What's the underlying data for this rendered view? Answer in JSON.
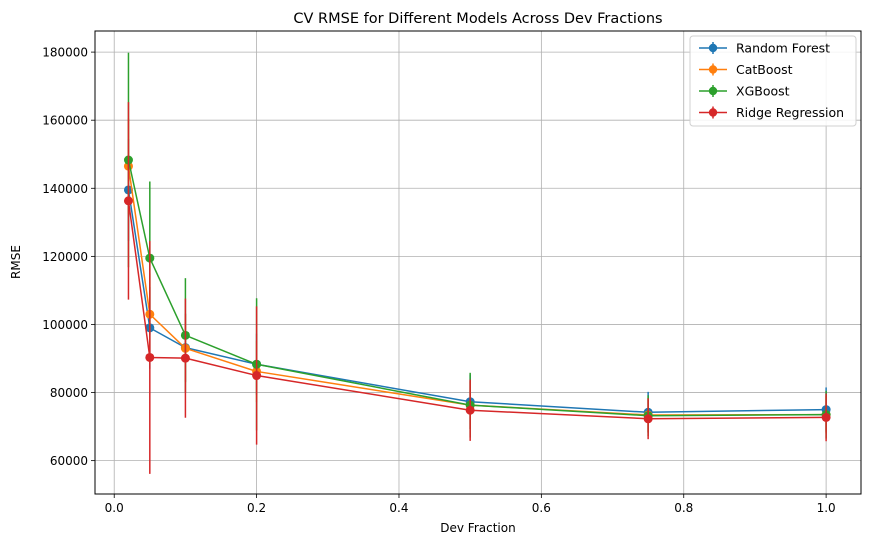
{
  "chart_data": {
    "type": "line",
    "title": "CV RMSE for Different Models Across Dev Fractions",
    "xlabel": "Dev Fraction",
    "ylabel": "RMSE",
    "xlim": [
      -0.027,
      1.049
    ],
    "ylim": [
      50200,
      186200
    ],
    "xticks": [
      0.0,
      0.2,
      0.4,
      0.6,
      0.8,
      1.0
    ],
    "xtick_labels": [
      "0.0",
      "0.2",
      "0.4",
      "0.6",
      "0.8",
      "1.0"
    ],
    "yticks": [
      60000,
      80000,
      100000,
      120000,
      140000,
      160000,
      180000
    ],
    "ytick_labels": [
      "60000",
      "80000",
      "100000",
      "120000",
      "140000",
      "160000",
      "180000"
    ],
    "grid": true,
    "legend_position": "top-right",
    "x": [
      0.02,
      0.05,
      0.1,
      0.2,
      0.5,
      0.75,
      1.0
    ],
    "series": [
      {
        "name": "Random Forest",
        "color": "#1f77b4",
        "values": [
          139500,
          99000,
          93200,
          88300,
          77300,
          74200,
          75000
        ],
        "error": [
          15000,
          12000,
          10000,
          9000,
          8000,
          6000,
          6500
        ]
      },
      {
        "name": "CatBoost",
        "color": "#ff7f0e",
        "values": [
          146500,
          103000,
          93000,
          86200,
          76300,
          73400,
          73500
        ],
        "error": [
          14000,
          12000,
          10000,
          9000,
          7000,
          5000,
          5500
        ]
      },
      {
        "name": "XGBoost",
        "color": "#2ca02c",
        "values": [
          148300,
          119500,
          96800,
          88300,
          76300,
          73200,
          73500
        ],
        "error": [
          31500,
          22500,
          16800,
          19400,
          9500,
          6000,
          7000
        ]
      },
      {
        "name": "Ridge Regression",
        "color": "#d62728",
        "values": [
          136300,
          90300,
          90100,
          85000,
          74800,
          72300,
          72700
        ],
        "error": [
          29000,
          34200,
          17500,
          20300,
          9000,
          6000,
          7000
        ]
      }
    ]
  }
}
